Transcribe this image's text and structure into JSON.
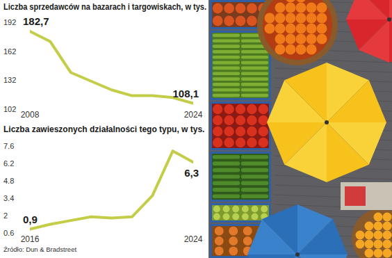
{
  "chart_data": [
    {
      "type": "line",
      "title": "Liczba sprzedawców na bazarach i targowiskach, w tys.",
      "x": [
        2008,
        2010,
        2012,
        2014,
        2016,
        2018,
        2020,
        2022,
        2024
      ],
      "values": [
        182.7,
        172,
        140,
        131,
        122,
        116,
        116,
        114,
        108.1
      ],
      "value_labels": [
        "182,7",
        null,
        null,
        null,
        null,
        null,
        null,
        null,
        "108,1"
      ],
      "data_labels": true,
      "color": "#c3cd48",
      "xlim": [
        2008,
        2024
      ],
      "xticks": [
        2008,
        2024
      ],
      "ylim": [
        102,
        192
      ],
      "yticks": [
        102,
        132,
        162,
        192
      ],
      "grid": false
    },
    {
      "type": "line",
      "title": "Liczba zawieszonych działalności tego typu, w tys.",
      "x": [
        2016,
        2017,
        2018,
        2019,
        2020,
        2021,
        2022,
        2023,
        2024
      ],
      "values": [
        0.9,
        1.3,
        1.6,
        1.9,
        1.8,
        1.9,
        3.6,
        7.2,
        6.3
      ],
      "value_labels": [
        "0,9",
        null,
        null,
        null,
        null,
        null,
        null,
        null,
        "6,3"
      ],
      "data_labels": true,
      "color": "#c3cd48",
      "xlim": [
        2016,
        2024
      ],
      "xticks": [
        2016,
        2024
      ],
      "ylim": [
        0.6,
        7.6
      ],
      "yticks": [
        0.6,
        2,
        3.4,
        4.8,
        6.2,
        7.6
      ],
      "grid": false
    }
  ],
  "source": "Źródło: Dun & Bradstreet"
}
